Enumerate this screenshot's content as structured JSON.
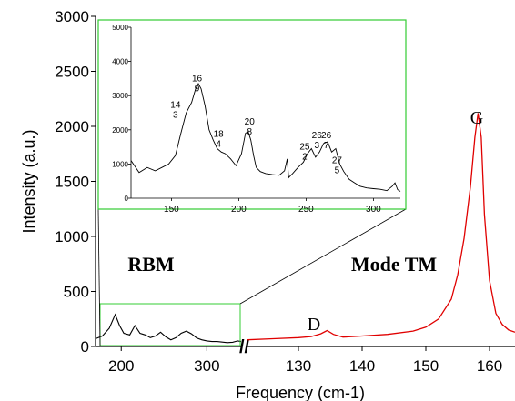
{
  "chart_data": {
    "type": "line",
    "xlabel": "Frequency (cm-1)",
    "ylabel": "Intensity (a.u.)",
    "ylim": [
      0,
      3000
    ],
    "yticks": [
      0,
      500,
      1000,
      1500,
      2000,
      2500,
      3000
    ],
    "grid": false,
    "left_segment": {
      "xlim": [
        170,
        340
      ],
      "xticks": [
        200,
        300
      ],
      "color": "#000000",
      "x": [
        170,
        178,
        186,
        193,
        198,
        203,
        210,
        216,
        222,
        228,
        234,
        240,
        246,
        252,
        258,
        264,
        270,
        276,
        282,
        288,
        294,
        300,
        306,
        312,
        318,
        324,
        330,
        336,
        340
      ],
      "y": [
        70,
        95,
        165,
        290,
        190,
        120,
        105,
        190,
        120,
        105,
        80,
        95,
        130,
        88,
        60,
        80,
        120,
        140,
        115,
        78,
        60,
        50,
        45,
        45,
        40,
        35,
        38,
        50,
        45
      ]
    },
    "right_segment": {
      "xlim": [
        122,
        164
      ],
      "xticks": [
        130,
        140,
        150,
        160
      ],
      "color": "#e00000",
      "x": [
        122,
        126,
        130,
        132,
        133.5,
        134.5,
        135.5,
        137,
        140,
        144,
        148,
        150,
        152,
        154,
        155,
        156,
        157,
        157.7,
        158.2,
        158.7,
        159.2,
        160,
        161,
        162,
        163,
        164
      ],
      "y": [
        60,
        70,
        80,
        90,
        115,
        145,
        110,
        85,
        95,
        110,
        140,
        175,
        250,
        430,
        650,
        980,
        1450,
        1900,
        2120,
        1900,
        1200,
        600,
        300,
        200,
        150,
        130
      ]
    },
    "inset": {
      "border_color": "#33cc33",
      "xlim": [
        120,
        320
      ],
      "ylim": [
        0,
        5000
      ],
      "xticks": [
        150,
        200,
        250,
        300
      ],
      "yticks": [
        0,
        1000,
        2000,
        3000,
        4000,
        5000
      ],
      "x": [
        120,
        126,
        132,
        138,
        143,
        148,
        153,
        157,
        161,
        165,
        168,
        170,
        172,
        175,
        178,
        181,
        184,
        187,
        190,
        194,
        198,
        202,
        205,
        207,
        209,
        211,
        213,
        216,
        220,
        225,
        230,
        234,
        236,
        237,
        238,
        240,
        244,
        248,
        251,
        254,
        257,
        260,
        263,
        266,
        269,
        272,
        275,
        278,
        282,
        286,
        290,
        295,
        300,
        305,
        310,
        314,
        316,
        318,
        320
      ],
      "y": [
        1100,
        750,
        900,
        800,
        900,
        1000,
        1250,
        1900,
        2500,
        2800,
        3200,
        3350,
        3200,
        2700,
        2000,
        1700,
        1450,
        1350,
        1300,
        1150,
        950,
        1300,
        1900,
        1950,
        1700,
        1250,
        900,
        780,
        720,
        690,
        670,
        800,
        1150,
        600,
        640,
        720,
        900,
        1050,
        1300,
        1450,
        1200,
        1350,
        1600,
        1650,
        1350,
        1450,
        1000,
        780,
        550,
        450,
        350,
        300,
        280,
        260,
        220,
        350,
        450,
        250,
        200
      ],
      "peak_labels": [
        {
          "line1": "16",
          "line2": "9",
          "x": 169,
          "y": 3420
        },
        {
          "line1": "14",
          "line2": "3",
          "x": 153,
          "y": 2650
        },
        {
          "line1": "18",
          "line2": "4",
          "x": 185,
          "y": 1790
        },
        {
          "line1": "20",
          "line2": "8",
          "x": 208,
          "y": 2150
        },
        {
          "line1": "25",
          "line2": "2",
          "x": 249,
          "y": 1420
        },
        {
          "line1": "26",
          "line2": "3",
          "x": 258,
          "y": 1760
        },
        {
          "line1": "26",
          "line2": "7",
          "x": 265,
          "y": 1760
        },
        {
          "line1": "27",
          "line2": "5",
          "x": 273,
          "y": 1030
        }
      ]
    },
    "annotations": [
      {
        "text": "G",
        "font": "serif",
        "bold": false
      },
      {
        "text": "D",
        "font": "serif",
        "bold": false
      },
      {
        "text": "RBM",
        "font": "serif",
        "bold": true
      },
      {
        "text": "Mode TM",
        "font": "serif",
        "bold": true
      }
    ],
    "axis_break": "//"
  }
}
